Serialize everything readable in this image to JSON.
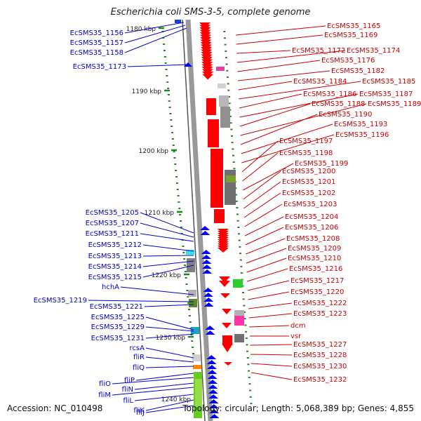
{
  "title": "Escherichia coli SMS-3-5, complete genome",
  "accession": "Accession: NC_010498",
  "topology": "Topology: circular; Length: 5,068,389 bp; Genes: 4,855",
  "colors": {
    "left_labels": "#0000cc",
    "right_labels": "#cc0000",
    "ruler": "#1a8a1a",
    "backbone": "#888888"
  },
  "ruler": [
    {
      "label": "1180 kbp"
    },
    {
      "label": "1190 kbp"
    },
    {
      "label": "1200 kbp"
    },
    {
      "label": "1210 kbp"
    },
    {
      "label": "1220 kbp"
    },
    {
      "label": "1230 kbp"
    },
    {
      "label": "1240 kbp"
    }
  ],
  "left_labels": [
    "EcSMS35_1156",
    "EcSMS35_1157",
    "EcSMS35_1158",
    "EcSMS35_1173",
    "EcSMS35_1205",
    "EcSMS35_1207",
    "EcSMS35_1211",
    "EcSMS35_1212",
    "EcSMS35_1213",
    "EcSMS35_1214",
    "EcSMS35_1215",
    "hchA",
    "EcSMS35_1219",
    "EcSMS35_1221",
    "EcSMS35_1225",
    "EcSMS35_1229",
    "EcSMS35_1231",
    "rcsA",
    "fliR",
    "fliQ",
    "fliP",
    "fliO",
    "fliN",
    "fliM",
    "fliL",
    "fliK",
    "fliJ"
  ],
  "right_labels": [
    "EcSMS35_1165",
    "EcSMS35_1169",
    "EcSMS35_1172",
    "EcSMS35_1174",
    "EcSMS35_1176",
    "EcSMS35_1182",
    "EcSMS35_1184",
    "EcSMS35_1185",
    "EcSMS35_1186",
    "EcSMS35_1187",
    "EcSMS35_1188",
    "EcSMS35_1189",
    "EcSMS35_1190",
    "EcSMS35_1193",
    "EcSMS35_1196",
    "EcSMS35_1197",
    "EcSMS35_1198",
    "EcSMS35_1199",
    "EcSMS35_1200",
    "EcSMS35_1201",
    "EcSMS35_1202",
    "EcSMS35_1203",
    "EcSMS35_1204",
    "EcSMS35_1206",
    "EcSMS35_1208",
    "EcSMS35_1209",
    "EcSMS35_1210",
    "EcSMS35_1216",
    "EcSMS35_1217",
    "EcSMS35_1220",
    "EcSMS35_1222",
    "EcSMS35_1223",
    "dcm",
    "vsr",
    "EcSMS35_1227",
    "EcSMS35_1228",
    "EcSMS35_1230",
    "EcSMS35_1232"
  ]
}
